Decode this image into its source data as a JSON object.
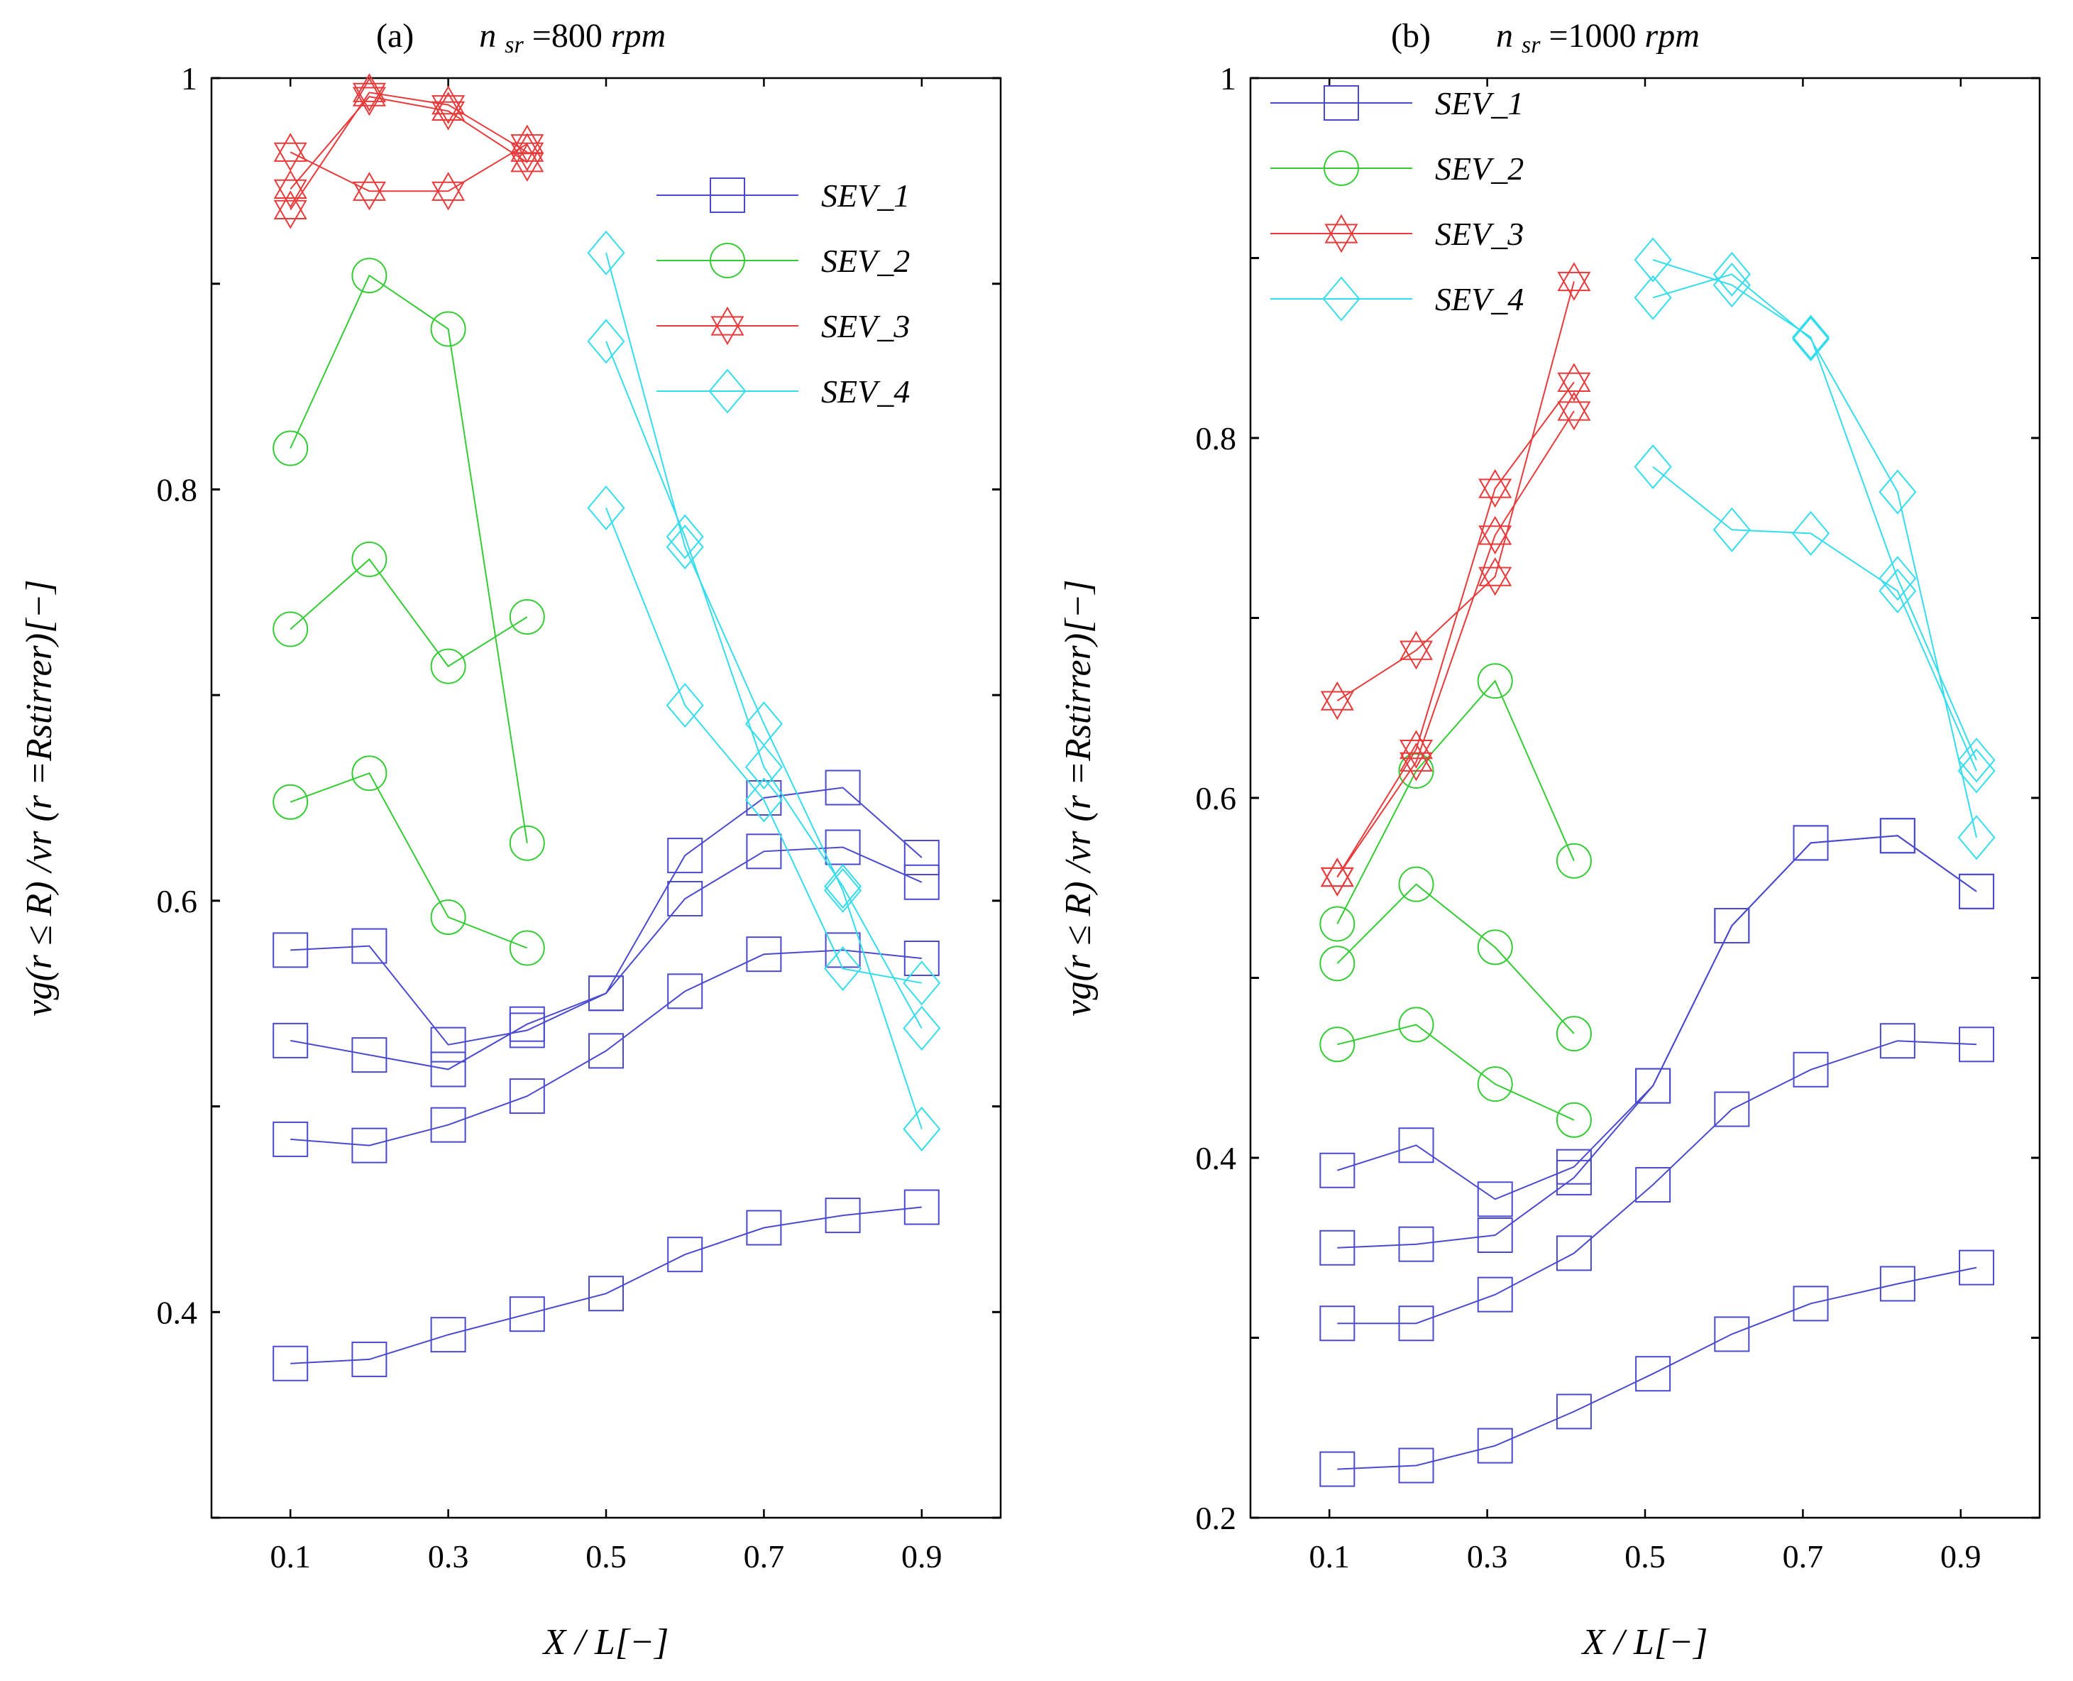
{
  "chart_data": [
    {
      "type": "line",
      "panel": "(a)",
      "title_prefix": "(a)",
      "title_n": "n",
      "title_sub": "sr",
      "title_value": "=800 ",
      "title_unit": "rpm",
      "xlabel": "X / L[−]",
      "ylabel": "vg(r ≤ R) /vr (r =Rstirrer)[−]",
      "xlim": [
        0.0,
        1.0
      ],
      "ylim": [
        0.3,
        1.0
      ],
      "x_ticks": [
        "0.1",
        "0.3",
        "0.5",
        "0.7",
        "0.9"
      ],
      "y_ticks": [
        "0.4",
        "0.6",
        "0.8",
        "1"
      ],
      "legend_position": "top-right",
      "series": [
        {
          "name": "SEV_1",
          "color": "#4a4ad0",
          "marker": "square",
          "curves": [
            {
              "x": [
                0.1,
                0.2,
                0.3,
                0.4,
                0.5,
                0.6,
                0.7,
                0.8,
                0.9
              ],
              "y": [
                0.375,
                0.377,
                0.389,
                0.399,
                0.409,
                0.428,
                0.441,
                0.447,
                0.451
              ]
            },
            {
              "x": [
                0.1,
                0.2,
                0.3,
                0.4,
                0.5,
                0.6,
                0.7,
                0.8,
                0.9
              ],
              "y": [
                0.484,
                0.481,
                0.491,
                0.505,
                0.527,
                0.556,
                0.574,
                0.576,
                0.572
              ]
            },
            {
              "x": [
                0.1,
                0.2,
                0.3,
                0.4,
                0.5,
                0.6,
                0.7,
                0.8,
                0.9
              ],
              "y": [
                0.532,
                0.525,
                0.518,
                0.54,
                0.555,
                0.601,
                0.624,
                0.626,
                0.609
              ]
            },
            {
              "x": [
                0.1,
                0.2,
                0.3,
                0.4,
                0.5,
                0.6,
                0.7,
                0.8,
                0.9
              ],
              "y": [
                0.576,
                0.578,
                0.53,
                0.537,
                0.555,
                0.622,
                0.65,
                0.655,
                0.621
              ]
            }
          ]
        },
        {
          "name": "SEV_2",
          "color": "#33cc33",
          "marker": "circle",
          "curves": [
            {
              "x": [
                0.1,
                0.2,
                0.3,
                0.4
              ],
              "y": [
                0.648,
                0.662,
                0.592,
                0.577
              ]
            },
            {
              "x": [
                0.1,
                0.2,
                0.3,
                0.4
              ],
              "y": [
                0.732,
                0.766,
                0.714,
                0.738
              ]
            },
            {
              "x": [
                0.1,
                0.2,
                0.3,
                0.4
              ],
              "y": [
                0.82,
                0.904,
                0.878,
                0.628
              ]
            }
          ]
        },
        {
          "name": "SEV_3",
          "color": "#e83a3a",
          "marker": "star",
          "curves": [
            {
              "x": [
                0.1,
                0.2,
                0.3,
                0.4
              ],
              "y": [
                0.936,
                0.993,
                0.987,
                0.964
              ]
            },
            {
              "x": [
                0.1,
                0.2,
                0.3,
                0.4
              ],
              "y": [
                0.946,
                0.991,
                0.984,
                0.959
              ]
            },
            {
              "x": [
                0.1,
                0.2,
                0.3,
                0.4
              ],
              "y": [
                0.964,
                0.945,
                0.945,
                0.968
              ]
            }
          ]
        },
        {
          "name": "SEV_4",
          "color": "#33ddee",
          "marker": "diamond",
          "curves": [
            {
              "x": [
                0.5,
                0.6,
                0.7,
                0.8,
                0.9
              ],
              "y": [
                0.915,
                0.772,
                0.686,
                0.605,
                0.489
              ]
            },
            {
              "x": [
                0.5,
                0.6,
                0.7,
                0.8,
                0.9
              ],
              "y": [
                0.872,
                0.777,
                0.665,
                0.607,
                0.538
              ]
            },
            {
              "x": [
                0.5,
                0.6,
                0.7,
                0.8,
                0.9
              ],
              "y": [
                0.791,
                0.695,
                0.649,
                0.567,
                0.56
              ]
            }
          ]
        }
      ]
    },
    {
      "type": "line",
      "panel": "(b)",
      "title_prefix": "(b)",
      "title_n": "n",
      "title_sub": "sr",
      "title_value": " =1000 ",
      "title_unit": "rpm",
      "xlabel": "X / L[−]",
      "ylabel": "vg(r ≤ R) /vr (r =Rstirrer)[−]",
      "xlim": [
        0.0,
        1.0
      ],
      "ylim": [
        0.2,
        1.0
      ],
      "x_ticks": [
        "0.1",
        "0.3",
        "0.5",
        "0.7",
        "0.9"
      ],
      "y_ticks": [
        "0.2",
        "0.4",
        "0.6",
        "0.8",
        "1"
      ],
      "legend_position": "top-left",
      "series": [
        {
          "name": "SEV_1",
          "color": "#4a4ad0",
          "marker": "square",
          "curves": [
            {
              "x": [
                0.11,
                0.21,
                0.31,
                0.41,
                0.51,
                0.61,
                0.71,
                0.82,
                0.92
              ],
              "y": [
                0.227,
                0.229,
                0.24,
                0.259,
                0.28,
                0.302,
                0.319,
                0.33,
                0.339
              ]
            },
            {
              "x": [
                0.11,
                0.21,
                0.31,
                0.41,
                0.51,
                0.61,
                0.71,
                0.82,
                0.92
              ],
              "y": [
                0.308,
                0.308,
                0.324,
                0.347,
                0.385,
                0.427,
                0.449,
                0.465,
                0.463
              ]
            },
            {
              "x": [
                0.11,
                0.21,
                0.31,
                0.41,
                0.51,
                0.61,
                0.71,
                0.82,
                0.92
              ],
              "y": [
                0.35,
                0.352,
                0.357,
                0.389,
                0.44,
                0.529,
                0.575,
                0.579,
                0.548
              ]
            },
            {
              "x": [
                0.11,
                0.21,
                0.31,
                0.41,
                0.51,
                0.61,
                0.71,
                0.82,
                0.92
              ],
              "y": [
                0.393,
                0.407,
                0.377,
                0.395,
                0.44,
                0.529,
                0.575,
                0.579,
                0.548
              ]
            }
          ]
        },
        {
          "name": "SEV_2",
          "color": "#33cc33",
          "marker": "circle",
          "curves": [
            {
              "x": [
                0.11,
                0.21,
                0.31,
                0.41
              ],
              "y": [
                0.463,
                0.474,
                0.441,
                0.421
              ]
            },
            {
              "x": [
                0.11,
                0.21,
                0.31,
                0.41
              ],
              "y": [
                0.508,
                0.552,
                0.517,
                0.469
              ]
            },
            {
              "x": [
                0.11,
                0.21,
                0.31,
                0.41
              ],
              "y": [
                0.53,
                0.615,
                0.665,
                0.565
              ]
            }
          ]
        },
        {
          "name": "SEV_3",
          "color": "#e83a3a",
          "marker": "star",
          "curves": [
            {
              "x": [
                0.11,
                0.21,
                0.31,
                0.41
              ],
              "y": [
                0.654,
                0.682,
                0.723,
                0.887
              ]
            },
            {
              "x": [
                0.11,
                0.21,
                0.31,
                0.41
              ],
              "y": [
                0.556,
                0.627,
                0.772,
                0.831
              ]
            },
            {
              "x": [
                0.11,
                0.21,
                0.31,
                0.41
              ],
              "y": [
                0.556,
                0.62,
                0.746,
                0.815
              ]
            }
          ]
        },
        {
          "name": "SEV_4",
          "color": "#33ddee",
          "marker": "diamond",
          "curves": [
            {
              "x": [
                0.51,
                0.61,
                0.71,
                0.82,
                0.92
              ],
              "y": [
                0.899,
                0.885,
                0.856,
                0.722,
                0.621
              ]
            },
            {
              "x": [
                0.51,
                0.61,
                0.71,
                0.82,
                0.92
              ],
              "y": [
                0.878,
                0.891,
                0.855,
                0.77,
                0.578
              ]
            },
            {
              "x": [
                0.51,
                0.61,
                0.71,
                0.82,
                0.92
              ],
              "y": [
                0.784,
                0.749,
                0.747,
                0.715,
                0.615
              ]
            }
          ]
        }
      ]
    }
  ]
}
